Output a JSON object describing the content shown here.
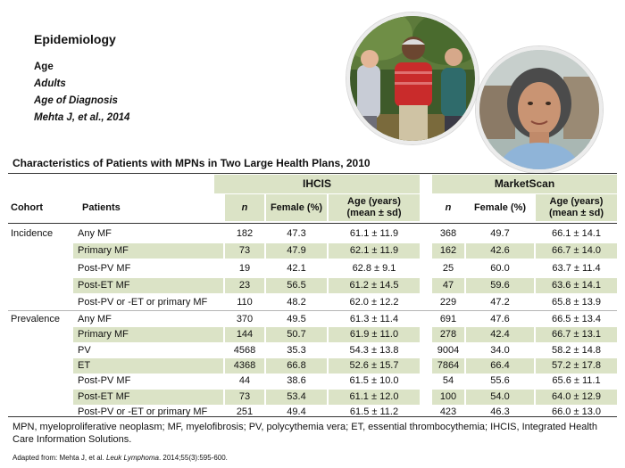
{
  "header": {
    "title": "Epidemiology",
    "lines": [
      "Age",
      "Adults",
      "Age of Diagnosis",
      "Mehta J, et al., 2014"
    ]
  },
  "table": {
    "title": "Characteristics of Patients with MPNs in Two Large Health Plans, 2010",
    "groups": [
      "IHCIS",
      "MarketScan"
    ],
    "columns": {
      "cohort": "Cohort",
      "patients": "Patients",
      "n": "n",
      "female": "Female (%)",
      "age_line1": "Age (years)",
      "age_line2": "(mean ± sd)"
    },
    "incidence": {
      "label": "Incidence",
      "rows": [
        {
          "patients": "Any MF",
          "i_n": "182",
          "i_f": "47.3",
          "i_age": "61.1 ± 11.9",
          "m_n": "368",
          "m_f": "49.7",
          "m_age": "66.1 ± 14.1"
        },
        {
          "patients": "Primary MF",
          "i_n": "73",
          "i_f": "47.9",
          "i_age": "62.1 ± 11.9",
          "m_n": "162",
          "m_f": "42.6",
          "m_age": "66.7 ± 14.0"
        },
        {
          "patients": "Post-PV MF",
          "i_n": "19",
          "i_f": "42.1",
          "i_age": "62.8 ± 9.1",
          "m_n": "25",
          "m_f": "60.0",
          "m_age": "63.7 ± 11.4"
        },
        {
          "patients": "Post-ET MF",
          "i_n": "23",
          "i_f": "56.5",
          "i_age": "61.2 ± 14.5",
          "m_n": "47",
          "m_f": "59.6",
          "m_age": "63.6 ± 14.1"
        },
        {
          "patients": "Post-PV or -ET or primary MF",
          "i_n": "110",
          "i_f": "48.2",
          "i_age": "62.0 ± 12.2",
          "m_n": "229",
          "m_f": "47.2",
          "m_age": "65.8 ± 13.9"
        }
      ]
    },
    "prevalence": {
      "label": "Prevalence",
      "rows": [
        {
          "patients": "Any MF",
          "i_n": "370",
          "i_f": "49.5",
          "i_age": "61.3 ± 11.4",
          "m_n": "691",
          "m_f": "47.6",
          "m_age": "66.5 ± 13.4"
        },
        {
          "patients": "Primary MF",
          "i_n": "144",
          "i_f": "50.7",
          "i_age": "61.9 ± 11.0",
          "m_n": "278",
          "m_f": "42.4",
          "m_age": "66.7 ± 13.1"
        },
        {
          "patients": "PV",
          "i_n": "4568",
          "i_f": "35.3",
          "i_age": "54.3 ± 13.8",
          "m_n": "9004",
          "m_f": "34.0",
          "m_age": "58.2 ± 14.8"
        },
        {
          "patients": "ET",
          "i_n": "4368",
          "i_f": "66.8",
          "i_age": "52.6 ± 15.7",
          "m_n": "7864",
          "m_f": "66.4",
          "m_age": "57.2 ± 17.8"
        },
        {
          "patients": "Post-PV MF",
          "i_n": "44",
          "i_f": "38.6",
          "i_age": "61.5 ± 10.0",
          "m_n": "54",
          "m_f": "55.6",
          "m_age": "65.6 ± 11.1"
        },
        {
          "patients": "Post-ET MF",
          "i_n": "73",
          "i_f": "53.4",
          "i_age": "61.1 ± 12.0",
          "m_n": "100",
          "m_f": "54.0",
          "m_age": "64.0 ± 12.9"
        },
        {
          "patients": "Post-PV or -ET or primary MF",
          "i_n": "251",
          "i_f": "49.4",
          "i_age": "61.5 ± 11.2",
          "m_n": "423",
          "m_f": "46.3",
          "m_age": "66.0 ± 13.0"
        }
      ]
    }
  },
  "footnote": "MPN, myeloproliferative neoplasm; MF, myelofibrosis; PV, polycythemia vera; ET, essential thrombocythemia; IHCIS, Integrated Health Care Information Solutions.",
  "source": {
    "prefix": "Adapted from: Mehta J, et al. ",
    "journal": "Leuk Lymphoma",
    "suffix": ". 2014;55(3):595-600."
  },
  "colors": {
    "shade": "#dbe3c6",
    "rule": "#333333"
  }
}
